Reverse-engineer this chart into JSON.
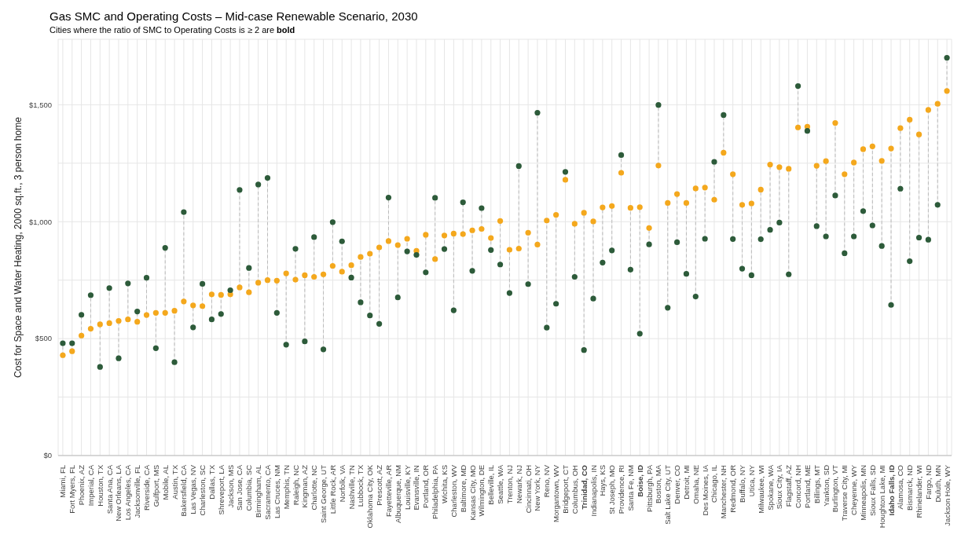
{
  "chart_data": {
    "type": "scatter",
    "title": "Gas SMC and Operating Costs – Mid-case Renewable Scenario, 2030",
    "subtitle": "Cities where the ratio of SMC to Operating Costs is ≥ 2 are bold",
    "ylabel": "Cost for Space and Water Heating, 2000 sq.ft., 3 person home",
    "categories": [
      "Miami, FL",
      "Fort Myers, FL",
      "Phoenix, AZ",
      "Imperial, CA",
      "Houston, TX",
      "Santa Ana, CA",
      "New Orleans, LA",
      "Los Angeles, CA",
      "Jacksonville, FL",
      "Riverside, CA",
      "Gulfport, MS",
      "Mobile, AL",
      "Austin, TX",
      "Bakersfield, CA",
      "Las Vegas, NV",
      "Charleston, SC",
      "Dallas, TX",
      "Shreveport, LA",
      "Jackson, MS",
      "San Jose, CA",
      "Columbia, SC",
      "Birmingham, AL",
      "Sacramento, CA",
      "Las Cruces, NM",
      "Memphis, TN",
      "Raleigh, NC",
      "Kingman, AZ",
      "Charlotte, NC",
      "Saint George, UT",
      "Little Rock, AR",
      "Norfolk, VA",
      "Nashville, TN",
      "Lubbock, TX",
      "Oklahoma City, OK",
      "Prescott, AZ",
      "Fayetteville, AR",
      "Albuquerque, NM",
      "Louisville, KY",
      "Evansville, IN",
      "Portland, OR",
      "Philadelphia, PA",
      "Wichita, KS",
      "Charleston, WV",
      "Baltimore, MD",
      "Kansas City, MO",
      "Wilmington, DE",
      "Belleville, IL",
      "Seattle, WA",
      "Trenton, NJ",
      "Newark, NJ",
      "Cincinnati, OH",
      "New York, NY",
      "Reno, NV",
      "Morgantown, WV",
      "Bridgeport, CT",
      "Columbus, OH",
      "Trinidad, CO",
      "Indianapolis, IN",
      "Hays, KS",
      "St Joseph, MO",
      "Providence, RI",
      "Santa Fe, NM",
      "Boise, ID",
      "Pittsburgh, PA",
      "Boston, MA",
      "Salt Lake City, UT",
      "Denver, CO",
      "Detroit, MI",
      "Omaha, NE",
      "Des Moines, IA",
      "Chicago, IL",
      "Manchester, NH",
      "Redmond, OR",
      "Buffalo, NY",
      "Utica, NY",
      "Milwaukee, WI",
      "Spokane, WA",
      "Sioux City, IA",
      "Flagstaff, AZ",
      "Concord, NH",
      "Portland, ME",
      "Billings, MT",
      "Yankton, SD",
      "Burlington, VT",
      "Traverse City, MI",
      "Cheyenne, WY",
      "Minneapolis, MN",
      "Sioux Falls, SD",
      "Houghton Lake, MI",
      "Idaho Falls, ID",
      "Alamosa, CO",
      "Bismarck, ND",
      "Rhinelander, WI",
      "Fargo, ND",
      "Duluth, MN",
      "Jackson Hole, WY"
    ],
    "series": [
      {
        "color": "#f4a81d",
        "values": [
          429,
          446,
          513,
          542,
          561,
          566,
          576,
          582,
          572,
          601,
          610,
          610,
          619,
          659,
          642,
          639,
          689,
          687,
          689,
          719,
          698,
          739,
          750,
          748,
          779,
          752,
          771,
          764,
          775,
          811,
          786,
          814,
          849,
          863,
          890,
          917,
          900,
          927,
          875,
          944,
          840,
          941,
          949,
          947,
          963,
          969,
          930,
          1003,
          880,
          885,
          953,
          902,
          1005,
          1029,
          1179,
          991,
          1038,
          1001,
          1061,
          1067,
          1209,
          1059,
          1062,
          973,
          1240,
          1080,
          1118,
          1080,
          1142,
          1146,
          1094,
          1295,
          1203,
          1072,
          1078,
          1137,
          1244,
          1233,
          1226,
          1403,
          1406,
          1239,
          1259,
          1422,
          1203,
          1253,
          1310,
          1322,
          1260,
          1313,
          1400,
          1436,
          1373,
          1478,
          1504,
          1559
        ]
      },
      {
        "color": "#2d5b3a",
        "values": [
          480,
          480,
          602,
          686,
          379,
          716,
          416,
          736,
          616,
          760,
          459,
          888,
          399,
          1041,
          548,
          734,
          582,
          605,
          707,
          1136,
          802,
          1159,
          1187,
          610,
          474,
          884,
          488,
          934,
          454,
          998,
          916,
          761,
          655,
          599,
          563,
          1103,
          676,
          873,
          858,
          783,
          1102,
          883,
          621,
          1083,
          790,
          1058,
          879,
          817,
          695,
          1238,
          733,
          1466,
          547,
          649,
          1213,
          764,
          451,
          671,
          825,
          877,
          1285,
          795,
          521,
          903,
          1499,
          632,
          912,
          777,
          680,
          927,
          1256,
          1456,
          926,
          799,
          771,
          925,
          965,
          996,
          775,
          1580,
          1388,
          981,
          937,
          1112,
          865,
          937,
          1045,
          984,
          896,
          644,
          1141,
          831,
          932,
          923,
          1072,
          1701
        ]
      }
    ],
    "ylim": [
      0,
      1780
    ],
    "yticks": [
      {
        "value": 0,
        "label": "$0"
      },
      {
        "value": 250,
        "label": null
      },
      {
        "value": 500,
        "label": "$500"
      },
      {
        "value": 750,
        "label": null
      },
      {
        "value": 1000,
        "label": "$1,000"
      },
      {
        "value": 1250,
        "label": null
      },
      {
        "value": 1500,
        "label": "$1,500"
      }
    ],
    "grid": true,
    "marker": "circle"
  }
}
